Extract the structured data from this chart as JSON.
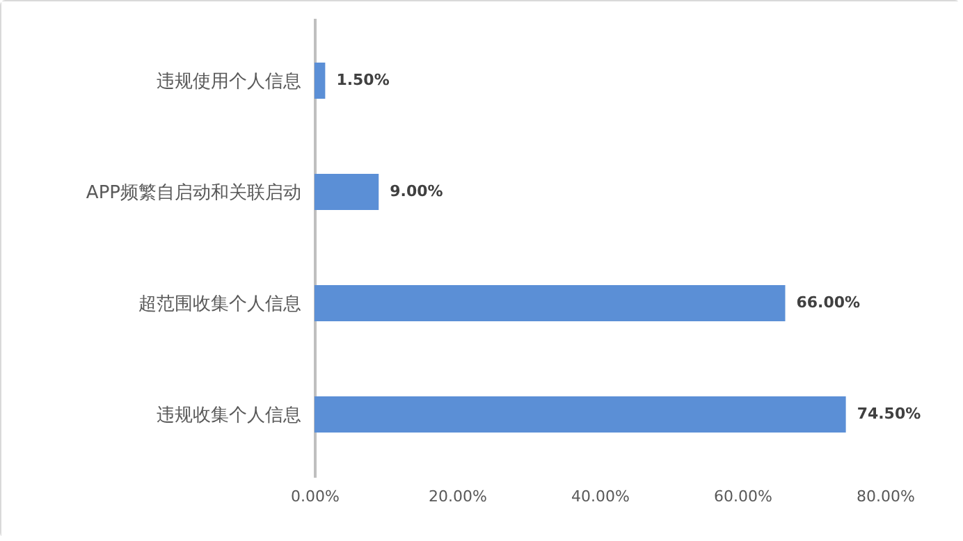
{
  "chart_data": {
    "type": "bar",
    "orientation": "horizontal",
    "categories": [
      "违规使用个人信息",
      "APP频繁自启动和关联启动",
      "超范围收集个人信息",
      "违规收集个人信息"
    ],
    "values": [
      1.5,
      9,
      66,
      74.5
    ],
    "value_labels": [
      "1.50%",
      "9.00%",
      "66.00%",
      "74.50%"
    ],
    "color": "#5b8fd6",
    "xlim": [
      0,
      80
    ],
    "xticks": [
      {
        "value": 0,
        "label": "0.00%"
      },
      {
        "value": 20,
        "label": "20.00%"
      },
      {
        "value": 40,
        "label": "40.00%"
      },
      {
        "value": 60,
        "label": "60.00%"
      },
      {
        "value": 80,
        "label": "80.00%"
      }
    ],
    "grid": false
  }
}
